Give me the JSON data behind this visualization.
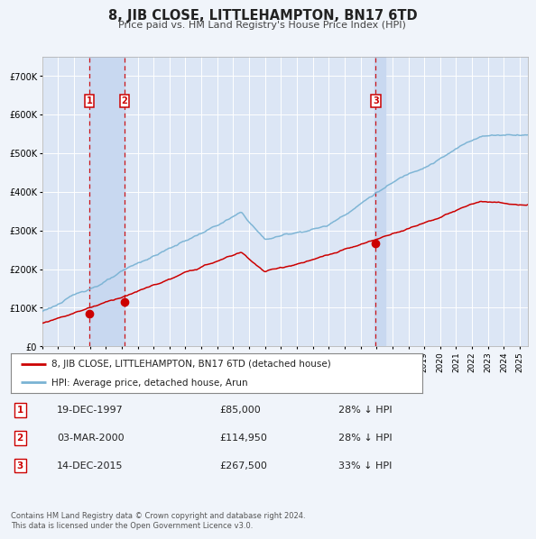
{
  "title": "8, JIB CLOSE, LITTLEHAMPTON, BN17 6TD",
  "subtitle": "Price paid vs. HM Land Registry's House Price Index (HPI)",
  "background_color": "#f0f4fa",
  "plot_bg_color": "#dce6f5",
  "grid_color": "#ffffff",
  "hpi_color": "#7ab3d4",
  "price_color": "#cc0000",
  "vline_color": "#cc0000",
  "vspan_color": "#c8d8f0",
  "sales": [
    {
      "date_num": 1997.96,
      "price": 85000,
      "label": "1"
    },
    {
      "date_num": 2000.17,
      "price": 114950,
      "label": "2"
    },
    {
      "date_num": 2015.95,
      "price": 267500,
      "label": "3"
    }
  ],
  "legend_entries": [
    "8, JIB CLOSE, LITTLEHAMPTON, BN17 6TD (detached house)",
    "HPI: Average price, detached house, Arun"
  ],
  "table_rows": [
    {
      "num": "1",
      "date": "19-DEC-1997",
      "price": "£85,000",
      "hpi": "28% ↓ HPI"
    },
    {
      "num": "2",
      "date": "03-MAR-2000",
      "price": "£114,950",
      "hpi": "28% ↓ HPI"
    },
    {
      "num": "3",
      "date": "14-DEC-2015",
      "price": "£267,500",
      "hpi": "33% ↓ HPI"
    }
  ],
  "footer": "Contains HM Land Registry data © Crown copyright and database right 2024.\nThis data is licensed under the Open Government Licence v3.0.",
  "ylim": [
    0,
    750000
  ],
  "xlim_start": 1995.0,
  "xlim_end": 2025.5,
  "yticks": [
    0,
    100000,
    200000,
    300000,
    400000,
    500000,
    600000,
    700000
  ],
  "ytick_labels": [
    "£0",
    "£100K",
    "£200K",
    "£300K",
    "£400K",
    "£500K",
    "£600K",
    "£700K"
  ]
}
